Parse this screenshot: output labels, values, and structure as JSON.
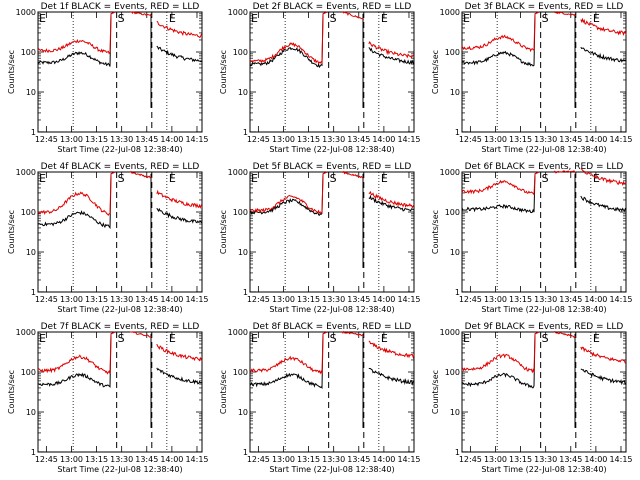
{
  "figure": {
    "grid": "3x3",
    "series_colors": {
      "events": "#000000",
      "lld": "#e00000"
    },
    "xlabel": "Start Time (22-Jul-08 12:38:40)",
    "ylabel": "Counts/sec",
    "yticks": [
      "1",
      "10",
      "100",
      "1000"
    ],
    "xticks": [
      "12:45",
      "13:00",
      "13:15",
      "13:30",
      "13:45",
      "14:00",
      "14:15"
    ],
    "markers": {
      "E": "E",
      "S": "S"
    }
  },
  "chart_data": [
    {
      "type": "line",
      "title": "Det 1f BLACK = Events, RED = LLD",
      "ylim": [
        1,
        1000
      ],
      "yscale": "log",
      "xlim": [
        "12:40",
        "14:18"
      ],
      "series": [
        {
          "values": {
            "baseline": 55,
            "peak": 100,
            "high": 1000,
            "tail": 55
          }
        },
        {
          "values": {
            "baseline": 110,
            "peak": 200,
            "high": 1000,
            "tail": 230
          }
        }
      ]
    },
    {
      "type": "line",
      "title": "Det 2f BLACK = Events, RED = LLD",
      "ylim": [
        1,
        1000
      ],
      "yscale": "log",
      "xlim": [
        "12:40",
        "14:18"
      ],
      "series": [
        {
          "values": {
            "baseline": 50,
            "peak": 130,
            "high": 1000,
            "tail": 50
          }
        },
        {
          "values": {
            "baseline": 60,
            "peak": 160,
            "high": 1000,
            "tail": 70
          }
        }
      ]
    },
    {
      "type": "line",
      "title": "Det 3f BLACK = Events, RED = LLD",
      "ylim": [
        1,
        1000
      ],
      "yscale": "log",
      "xlim": [
        "12:40",
        "14:18"
      ],
      "series": [
        {
          "values": {
            "baseline": 55,
            "peak": 100,
            "high": 1000,
            "tail": 55
          }
        },
        {
          "values": {
            "baseline": 130,
            "peak": 250,
            "high": 1000,
            "tail": 270
          }
        }
      ]
    },
    {
      "type": "line",
      "title": "Det 4f BLACK = Events, RED = LLD",
      "ylim": [
        1,
        1000
      ],
      "yscale": "log",
      "xlim": [
        "12:40",
        "14:18"
      ],
      "series": [
        {
          "values": {
            "baseline": 50,
            "peak": 100,
            "high": 1000,
            "tail": 50
          }
        },
        {
          "values": {
            "baseline": 100,
            "peak": 300,
            "high": 1000,
            "tail": 130
          }
        }
      ]
    },
    {
      "type": "line",
      "title": "Det 5f BLACK = Events, RED = LLD",
      "ylim": [
        1,
        1000
      ],
      "yscale": "log",
      "xlim": [
        "12:40",
        "14:18"
      ],
      "series": [
        {
          "values": {
            "baseline": 100,
            "peak": 200,
            "high": 1000,
            "tail": 100
          }
        },
        {
          "values": {
            "baseline": 110,
            "peak": 250,
            "high": 1000,
            "tail": 130
          }
        }
      ]
    },
    {
      "type": "line",
      "title": "Det 6f BLACK = Events, RED = LLD",
      "ylim": [
        1,
        1000
      ],
      "yscale": "log",
      "xlim": [
        "12:40",
        "14:18"
      ],
      "series": [
        {
          "values": {
            "baseline": 120,
            "peak": 150,
            "high": 1000,
            "tail": 100
          }
        },
        {
          "values": {
            "baseline": 330,
            "peak": 600,
            "high": 1000,
            "tail": 480
          }
        }
      ]
    },
    {
      "type": "line",
      "title": "Det 7f BLACK = Events, RED = LLD",
      "ylim": [
        1,
        1000
      ],
      "yscale": "log",
      "xlim": [
        "12:40",
        "14:18"
      ],
      "series": [
        {
          "values": {
            "baseline": 50,
            "peak": 90,
            "high": 1000,
            "tail": 50
          }
        },
        {
          "values": {
            "baseline": 110,
            "peak": 250,
            "high": 1000,
            "tail": 190
          }
        }
      ]
    },
    {
      "type": "line",
      "title": "Det 8f BLACK = Events, RED = LLD",
      "ylim": [
        1,
        1000
      ],
      "yscale": "log",
      "xlim": [
        "12:40",
        "14:18"
      ],
      "series": [
        {
          "values": {
            "baseline": 50,
            "peak": 90,
            "high": 1000,
            "tail": 50
          }
        },
        {
          "values": {
            "baseline": 110,
            "peak": 230,
            "high": 1000,
            "tail": 230
          }
        }
      ]
    },
    {
      "type": "line",
      "title": "Det 9f BLACK = Events, RED = LLD",
      "ylim": [
        1,
        1000
      ],
      "yscale": "log",
      "xlim": [
        "12:40",
        "14:18"
      ],
      "series": [
        {
          "values": {
            "baseline": 50,
            "peak": 90,
            "high": 1000,
            "tail": 50
          }
        },
        {
          "values": {
            "baseline": 120,
            "peak": 270,
            "high": 1000,
            "tail": 170
          }
        }
      ]
    }
  ]
}
